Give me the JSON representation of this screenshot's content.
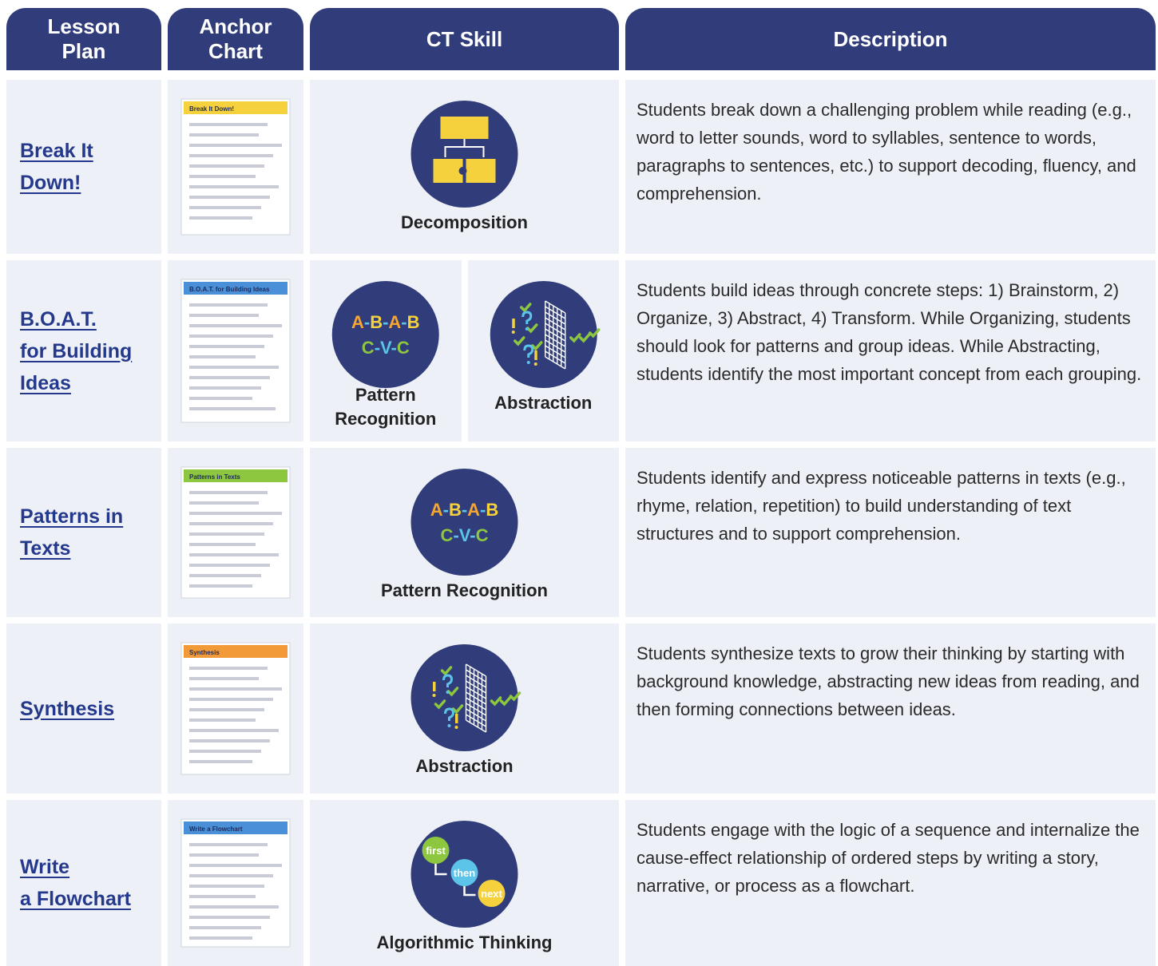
{
  "header": [
    "Lesson Plan",
    "Anchor Chart",
    "CT Skill",
    "Description"
  ],
  "rows": [
    {
      "lesson_plan": [
        "Break It",
        "Down!"
      ],
      "anchor_chart": "Break It Down!",
      "skills": [
        "Decomposition"
      ],
      "description": "Students break down a challenging problem while reading (e.g., word to letter sounds, word to syllables, sentence to words, paragraphs to sentences, etc.) to support decoding, fluency, and comprehension."
    },
    {
      "lesson_plan": [
        "B.O.A.T.",
        "for Building",
        "Ideas"
      ],
      "anchor_chart": "B.O.A.T. for Building Ideas",
      "skills": [
        "Pattern Recognition",
        "Abstraction"
      ],
      "description": "Students build ideas through concrete steps: 1) Brainstorm, 2) Organize, 3) Abstract, 4) Transform. While Organizing, students should look for patterns and group ideas. While Abstracting, students identify the most important concept from each grouping."
    },
    {
      "lesson_plan": [
        "Patterns in",
        "Texts"
      ],
      "anchor_chart": "Patterns in Texts",
      "skills": [
        "Pattern Recognition"
      ],
      "description": "Students identify and express noticeable patterns in texts (e.g., rhyme, relation, repetition) to build understanding of text structures and to support comprehension."
    },
    {
      "lesson_plan": [
        "Synthesis"
      ],
      "anchor_chart": "Synthesis",
      "skills": [
        "Abstraction"
      ],
      "description": "Students synthesize texts to grow their thinking by starting with background knowledge, abstracting new ideas from reading, and then forming connections between ideas."
    },
    {
      "lesson_plan": [
        "Write",
        "a Flowchart"
      ],
      "anchor_chart": "Write a Flowchart",
      "skills": [
        "Algorithmic Thinking"
      ],
      "description": "Students engage with the logic of a sequence and internalize the cause-effect relationship of ordered steps by writing a story, narrative, or process as a flowchart."
    }
  ],
  "icon_text": {
    "pattern": [
      "A-B-A-B",
      "C-V-C"
    ],
    "algorithmic": [
      "first",
      "then",
      "next"
    ]
  }
}
